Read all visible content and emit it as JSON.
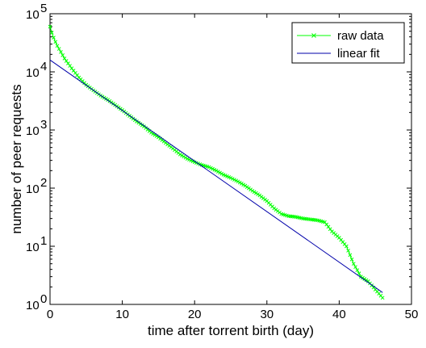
{
  "chart_data": {
    "type": "line",
    "xlabel": "time after torrent birth (day)",
    "ylabel": "number of peer requests",
    "xlim": [
      0,
      50
    ],
    "ylim": [
      1,
      100000
    ],
    "yscale": "log",
    "grid": false,
    "legend_position": "top-right",
    "x_ticks": [
      "0",
      "10",
      "20",
      "30",
      "40",
      "50"
    ],
    "y_ticks": [
      {
        "base": "10",
        "exp": "0"
      },
      {
        "base": "10",
        "exp": "1"
      },
      {
        "base": "10",
        "exp": "2"
      },
      {
        "base": "10",
        "exp": "3"
      },
      {
        "base": "10",
        "exp": "4"
      },
      {
        "base": "10",
        "exp": "5"
      }
    ],
    "series": [
      {
        "name": "raw data",
        "style": "line-with-x-markers",
        "color": "#00ff00",
        "points": [
          [
            0,
            60000
          ],
          [
            0.3,
            45000
          ],
          [
            0.6,
            36000
          ],
          [
            1,
            28000
          ],
          [
            1.5,
            22000
          ],
          [
            2,
            17000
          ],
          [
            3,
            11500
          ],
          [
            4,
            8000
          ],
          [
            5,
            6000
          ],
          [
            6,
            4800
          ],
          [
            7,
            3900
          ],
          [
            8,
            3300
          ],
          [
            9,
            2700
          ],
          [
            10,
            2200
          ],
          [
            11,
            1750
          ],
          [
            12,
            1400
          ],
          [
            13,
            1150
          ],
          [
            14,
            900
          ],
          [
            15,
            750
          ],
          [
            16,
            600
          ],
          [
            17,
            480
          ],
          [
            18,
            380
          ],
          [
            19,
            320
          ],
          [
            20,
            280
          ],
          [
            21,
            250
          ],
          [
            22,
            230
          ],
          [
            23,
            200
          ],
          [
            24,
            170
          ],
          [
            25,
            150
          ],
          [
            26,
            130
          ],
          [
            27,
            110
          ],
          [
            28,
            90
          ],
          [
            29,
            75
          ],
          [
            30,
            60
          ],
          [
            31,
            45
          ],
          [
            32,
            36
          ],
          [
            33,
            33
          ],
          [
            34,
            32
          ],
          [
            35,
            30
          ],
          [
            36,
            29
          ],
          [
            37,
            28
          ],
          [
            38,
            26
          ],
          [
            39,
            18
          ],
          [
            40,
            14
          ],
          [
            41,
            10
          ],
          [
            42,
            5
          ],
          [
            43,
            3
          ],
          [
            44,
            2.5
          ],
          [
            45,
            1.8
          ],
          [
            46,
            1.3
          ]
        ]
      },
      {
        "name": "linear fit",
        "style": "line",
        "color": "#0000aa",
        "points": [
          [
            0,
            16000
          ],
          [
            46,
            1.6
          ]
        ]
      }
    ]
  }
}
